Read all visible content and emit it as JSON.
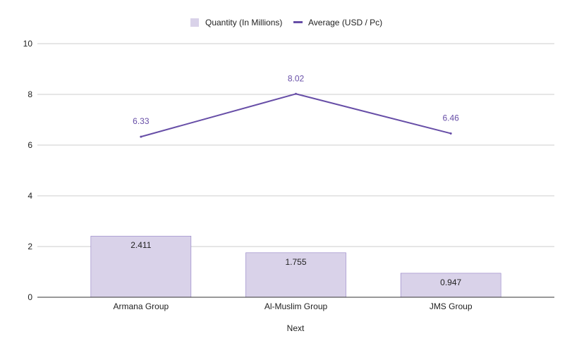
{
  "chart_data": {
    "type": "bar",
    "categories": [
      "Armana Group",
      "Al-Muslim Group",
      "JMS Group"
    ],
    "series": [
      {
        "name": "Quantity (In Millions)",
        "type": "bar",
        "values": [
          2.411,
          1.755,
          0.947
        ],
        "labels": [
          "2.411",
          "1.755",
          "0.947"
        ],
        "color": "#d9d2e9",
        "stroke": "#8e7cc3"
      },
      {
        "name": "Average (USD / Pc)",
        "type": "line",
        "values": [
          6.33,
          8.02,
          6.46
        ],
        "labels": [
          "6.33",
          "8.02",
          "6.46"
        ],
        "color": "#674ea7"
      }
    ],
    "xlabel": "Next",
    "ylabel": "",
    "ylim": [
      0,
      10
    ],
    "yticks": [
      "0",
      "2",
      "4",
      "6",
      "8",
      "10"
    ],
    "grid": true,
    "legend_position": "top-center",
    "colors": {
      "axis_text": "#222222",
      "gridline": "#cccccc",
      "axis_line": "#333333",
      "line_label": "#674ea7"
    }
  }
}
